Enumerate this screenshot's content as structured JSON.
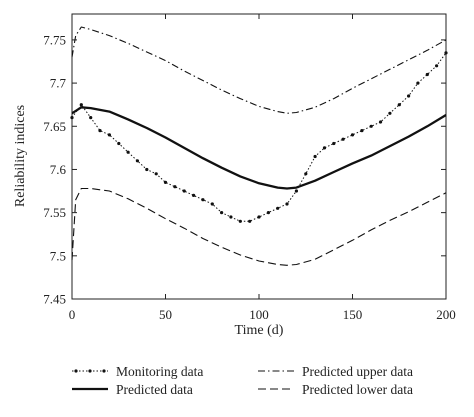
{
  "chart_data": {
    "type": "line",
    "xlabel": "Time (d)",
    "ylabel": "Reliability indices",
    "xlim": [
      0,
      200
    ],
    "ylim": [
      7.45,
      7.78
    ],
    "xticks": [
      "0",
      "50",
      "100",
      "150",
      "200"
    ],
    "yticks": [
      "7.45",
      "7.5",
      "7.55",
      "7.6",
      "7.65",
      "7.7",
      "7.75"
    ],
    "grid": false,
    "legend_position": "bottom",
    "series": [
      {
        "name": "Monitoring data",
        "style": "dotted-markers",
        "x": [
          0,
          5,
          10,
          15,
          20,
          25,
          30,
          35,
          40,
          45,
          50,
          55,
          60,
          65,
          70,
          75,
          80,
          85,
          90,
          95,
          100,
          105,
          110,
          115,
          120,
          125,
          130,
          135,
          140,
          145,
          150,
          155,
          160,
          165,
          170,
          175,
          180,
          185,
          190,
          195,
          200
        ],
        "values": [
          7.66,
          7.675,
          7.66,
          7.645,
          7.64,
          7.63,
          7.62,
          7.61,
          7.6,
          7.595,
          7.585,
          7.58,
          7.575,
          7.57,
          7.565,
          7.56,
          7.55,
          7.545,
          7.54,
          7.54,
          7.545,
          7.55,
          7.555,
          7.56,
          7.575,
          7.595,
          7.615,
          7.625,
          7.63,
          7.635,
          7.64,
          7.645,
          7.65,
          7.655,
          7.665,
          7.675,
          7.685,
          7.7,
          7.71,
          7.72,
          7.735
        ]
      },
      {
        "name": "Predicted data",
        "style": "solid",
        "x": [
          0,
          5,
          10,
          15,
          20,
          30,
          40,
          50,
          60,
          70,
          80,
          90,
          100,
          110,
          115,
          120,
          130,
          140,
          150,
          160,
          170,
          180,
          190,
          200
        ],
        "values": [
          7.665,
          7.672,
          7.671,
          7.669,
          7.667,
          7.658,
          7.648,
          7.637,
          7.625,
          7.613,
          7.602,
          7.592,
          7.584,
          7.579,
          7.578,
          7.579,
          7.587,
          7.597,
          7.607,
          7.616,
          7.627,
          7.638,
          7.65,
          7.663
        ]
      },
      {
        "name": "Predicted upper data",
        "style": "dash-dot",
        "x": [
          0,
          2,
          5,
          10,
          20,
          30,
          40,
          50,
          60,
          70,
          80,
          90,
          100,
          110,
          115,
          120,
          130,
          140,
          150,
          160,
          170,
          180,
          190,
          200
        ],
        "values": [
          7.73,
          7.755,
          7.765,
          7.762,
          7.755,
          7.746,
          7.736,
          7.726,
          7.714,
          7.703,
          7.692,
          7.682,
          7.673,
          7.667,
          7.665,
          7.666,
          7.672,
          7.682,
          7.694,
          7.705,
          7.716,
          7.727,
          7.738,
          7.75
        ]
      },
      {
        "name": "Predicted lower data",
        "style": "dashed",
        "x": [
          0,
          2,
          5,
          10,
          20,
          30,
          40,
          50,
          60,
          70,
          80,
          90,
          100,
          110,
          115,
          120,
          130,
          140,
          150,
          160,
          170,
          180,
          190,
          200
        ],
        "values": [
          7.495,
          7.565,
          7.578,
          7.578,
          7.575,
          7.566,
          7.555,
          7.543,
          7.532,
          7.52,
          7.51,
          7.501,
          7.494,
          7.49,
          7.489,
          7.49,
          7.496,
          7.507,
          7.518,
          7.53,
          7.541,
          7.551,
          7.562,
          7.573
        ]
      }
    ]
  }
}
